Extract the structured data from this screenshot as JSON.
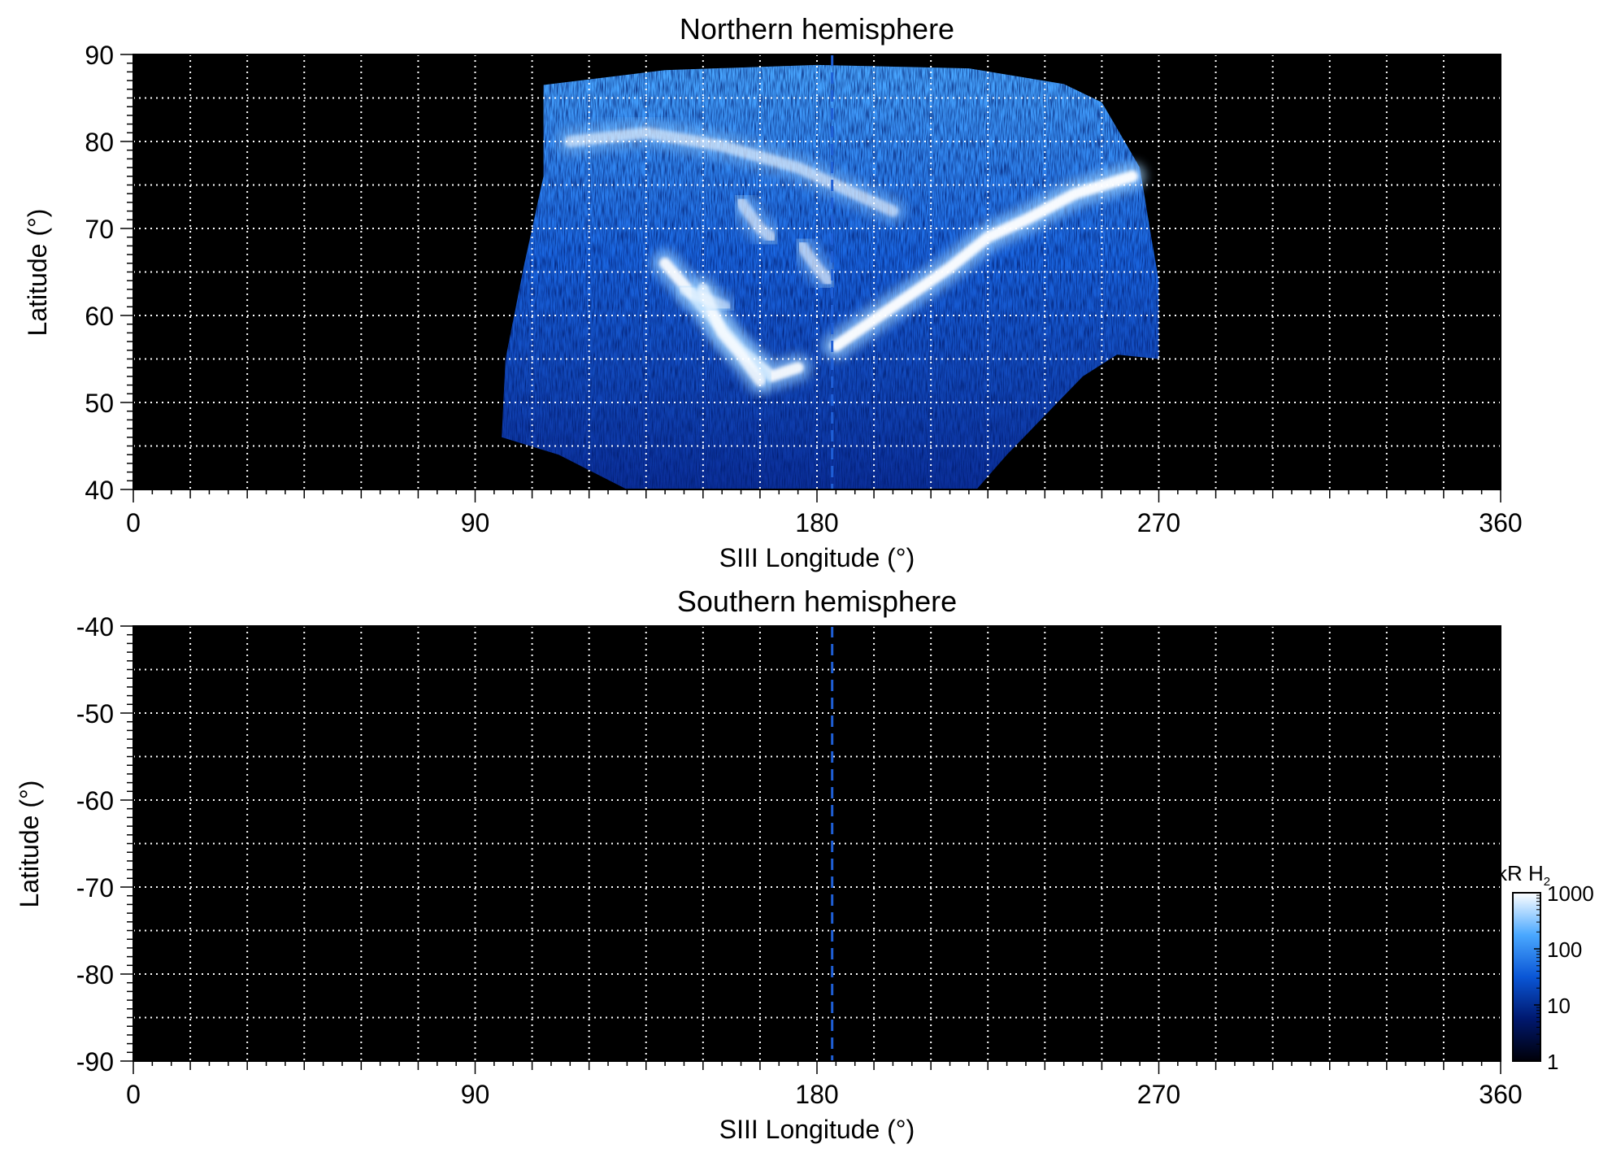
{
  "chart_data": [
    {
      "type": "heatmap",
      "title": "Northern hemisphere",
      "xlabel": "SIII Longitude (°)",
      "ylabel": "Latitude (°)",
      "xlim": [
        0,
        360
      ],
      "ylim": [
        40,
        90
      ],
      "xticks": [
        "0",
        "90",
        "180",
        "270",
        "360"
      ],
      "xtick_values": [
        0,
        90,
        180,
        270,
        360
      ],
      "yticks": [
        "40",
        "50",
        "60",
        "70",
        "80",
        "90"
      ],
      "ytick_values": [
        40,
        50,
        60,
        70,
        80,
        90
      ],
      "grid": true,
      "grid_color": "#ffffff",
      "background_color": "#000000",
      "marker_line": {
        "longitude": 184,
        "color": "#1f5fd6",
        "style": "dashed"
      },
      "emission_region": {
        "longitude_range": [
          97,
          270
        ],
        "outline": [
          [
            108,
            86.5
          ],
          [
            140,
            88.2
          ],
          [
            180,
            88.8
          ],
          [
            220,
            88.4
          ],
          [
            245,
            86.6
          ],
          [
            255,
            84.5
          ],
          [
            265,
            77
          ],
          [
            268,
            69
          ],
          [
            270,
            64
          ],
          [
            270,
            55
          ],
          [
            259,
            55.5
          ],
          [
            250,
            53
          ],
          [
            240,
            48.5
          ],
          [
            230,
            44
          ],
          [
            222,
            40
          ],
          [
            130,
            40
          ],
          [
            112,
            44
          ],
          [
            97,
            46
          ],
          [
            98,
            55
          ],
          [
            103,
            66
          ],
          [
            108,
            76
          ]
        ],
        "bright_arcs": [
          {
            "points": [
              [
                115,
                80
              ],
              [
                135,
                81
              ],
              [
                155,
                79.5
              ],
              [
                175,
                77
              ],
              [
                190,
                74
              ],
              [
                200,
                72
              ]
            ],
            "intensity": 0.55
          },
          {
            "points": [
              [
                140,
                66
              ],
              [
                150,
                61
              ],
              [
                160,
                56
              ],
              [
                168,
                53
              ],
              [
                175,
                54
              ]
            ],
            "intensity": 0.9
          },
          {
            "points": [
              [
                150,
                63
              ],
              [
                155,
                58
              ],
              [
                160,
                55.5
              ],
              [
                165,
                52.5
              ]
            ],
            "intensity": 0.8
          },
          {
            "points": [
              [
                185,
                56.5
              ],
              [
                195,
                59.5
              ],
              [
                205,
                62.5
              ],
              [
                215,
                65.5
              ],
              [
                225,
                69
              ],
              [
                235,
                71
              ],
              [
                248,
                74
              ],
              [
                263,
                76
              ]
            ],
            "intensity": 0.95
          },
          {
            "points": [
              [
                160,
                73
              ],
              [
                165,
                70
              ],
              [
                168,
                69
              ]
            ],
            "intensity": 0.55
          },
          {
            "points": [
              [
                176,
                68
              ],
              [
                180,
                65.5
              ],
              [
                183,
                64
              ]
            ],
            "intensity": 0.55
          },
          {
            "points": [
              [
                145,
                63
              ],
              [
                150,
                62
              ],
              [
                156,
                61
              ]
            ],
            "intensity": 0.45
          }
        ]
      }
    },
    {
      "type": "heatmap",
      "title": "Southern hemisphere",
      "xlabel": "SIII Longitude (°)",
      "ylabel": "Latitude (°)",
      "xlim": [
        0,
        360
      ],
      "ylim": [
        -90,
        -40
      ],
      "xticks": [
        "0",
        "90",
        "180",
        "270",
        "360"
      ],
      "xtick_values": [
        0,
        90,
        180,
        270,
        360
      ],
      "yticks": [
        "-90",
        "-80",
        "-70",
        "-60",
        "-50",
        "-40"
      ],
      "ytick_values": [
        -90,
        -80,
        -70,
        -60,
        -50,
        -40
      ],
      "grid": true,
      "grid_color": "#ffffff",
      "background_color": "#000000",
      "marker_line": {
        "longitude": 184,
        "color": "#1f5fd6",
        "style": "dashed"
      }
    }
  ],
  "colorbar": {
    "label_main": "kR H",
    "label_sub": "2",
    "scale": "log",
    "ticks": [
      "1",
      "10",
      "100",
      "1000"
    ],
    "tick_values": [
      1,
      10,
      100,
      1000
    ],
    "colors": [
      "#000008",
      "#00186e",
      "#0a56d6",
      "#4aa8ff",
      "#ffffff"
    ]
  }
}
